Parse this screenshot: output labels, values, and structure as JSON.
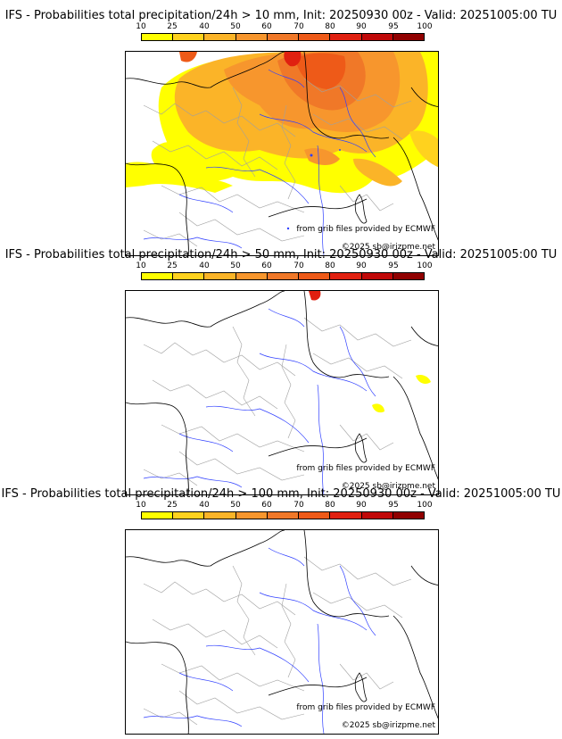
{
  "colorbar": {
    "ticks": [
      "10",
      "25",
      "40",
      "50",
      "60",
      "70",
      "80",
      "90",
      "95",
      "100"
    ],
    "colors": [
      "#ffff00",
      "#ffd21e",
      "#fbb428",
      "#f7962d",
      "#f07828",
      "#ee5a18",
      "#e02010",
      "#c00808",
      "#900000",
      "#600000"
    ]
  },
  "panels": [
    {
      "title": "IFS - Probabilities total precipitation/24h > 10 mm, Init: 20250930 00z - Valid: 20251005:00 TU",
      "credit_source": "from grib files provided by ECMWF",
      "credit_copyright": "©2025 sb@irizpme.net"
    },
    {
      "title": "IFS - Probabilities total precipitation/24h > 50 mm, Init: 20250930 00z - Valid: 20251005:00 TU",
      "credit_source": "from grib files provided by ECMWF",
      "credit_copyright": "©2025 sb@irizpme.net"
    },
    {
      "title": "IFS - Probabilities total precipitation/24h > 100 mm, Init: 20250930 00z - Valid: 20251005:00 TU",
      "credit_source": "from grib files provided by ECMWF",
      "credit_copyright": "©2025 sb@irizpme.net"
    }
  ]
}
